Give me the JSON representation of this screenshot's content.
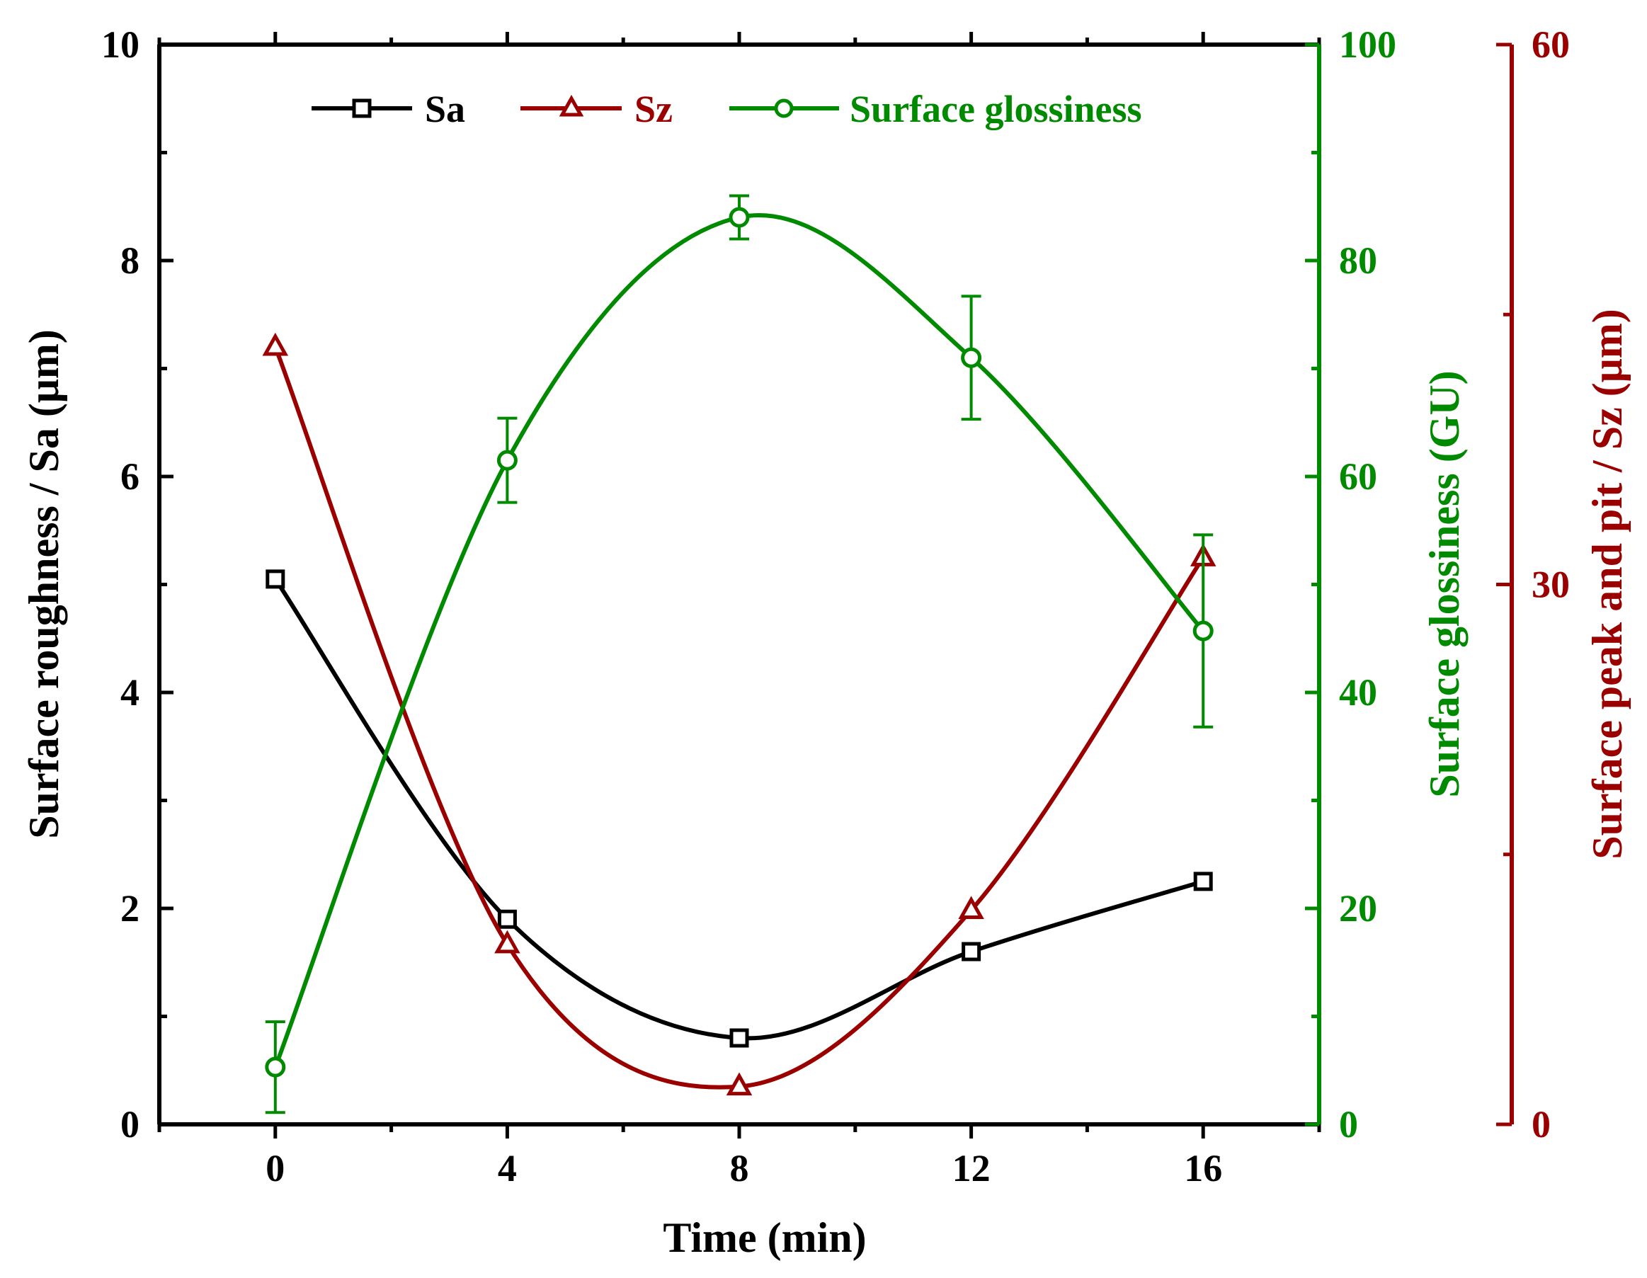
{
  "chart_data": {
    "type": "line",
    "x": [
      0,
      4,
      8,
      12,
      16
    ],
    "xlabel": "Time (min)",
    "xlim": [
      -2,
      18
    ],
    "xticks": [
      0,
      4,
      8,
      12,
      16
    ],
    "colors": {
      "sa": "#000000",
      "sz": "#9b0000",
      "gloss": "#008a00"
    },
    "axes": {
      "left": {
        "label": "Surface roughness / Sa (μm)",
        "ylim": [
          0,
          10
        ],
        "ticks": [
          0,
          2,
          4,
          6,
          8,
          10
        ]
      },
      "right1": {
        "label": "Surface glossiness (GU)",
        "ylim": [
          0,
          100
        ],
        "ticks": [
          0,
          20,
          40,
          60,
          80,
          100
        ]
      },
      "right2": {
        "label": "Surface peak and pit / Sz (μm)",
        "ylim": [
          0,
          60
        ],
        "ticks": [
          0,
          30,
          60
        ]
      }
    },
    "series": [
      {
        "name": "Sa",
        "axis": "left",
        "color": "#000000",
        "marker": "square",
        "values": [
          5.05,
          1.9,
          0.8,
          1.6,
          2.25
        ]
      },
      {
        "name": "Sz",
        "axis": "right2",
        "color": "#9b0000",
        "marker": "triangle",
        "values": [
          43.2,
          10.0,
          2.1,
          11.9,
          31.5
        ]
      },
      {
        "name": "Surface glossiness",
        "axis": "right1",
        "color": "#008a00",
        "marker": "circle",
        "values": [
          5.3,
          61.5,
          84.0,
          71.0,
          45.7
        ],
        "errors": [
          4.2,
          3.9,
          2.0,
          5.7,
          8.9
        ]
      }
    ],
    "legend": {
      "position": "top-center",
      "entries": [
        "Sa",
        "Sz",
        "Surface glossiness"
      ]
    }
  }
}
